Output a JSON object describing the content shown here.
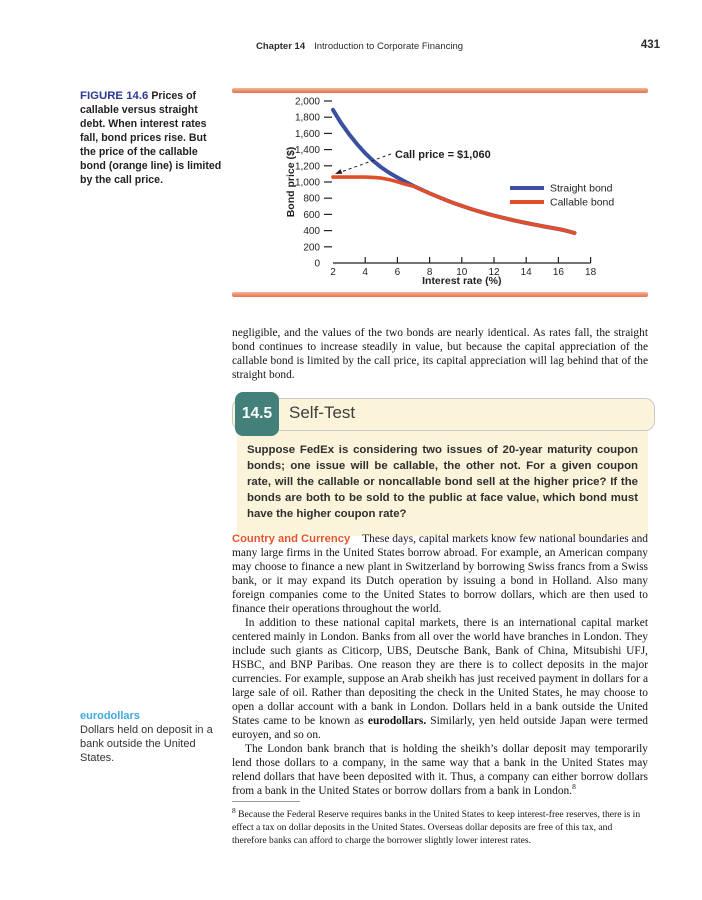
{
  "header": {
    "chapter": "Chapter 14",
    "title": "Introduction to Corporate Financing",
    "page_number": "431"
  },
  "figure": {
    "label": "FIGURE 14.6",
    "caption": "Prices of callable versus straight debt. When interest rates fall, bond prices rise. But the price of the callable bond (orange line) is limited by the call price."
  },
  "chart_data": {
    "type": "line",
    "title": "",
    "xlabel": "Interest rate (%)",
    "ylabel": "Bond price ($)",
    "xlim": [
      2,
      18
    ],
    "ylim": [
      0,
      2000
    ],
    "x_ticks": [
      2,
      4,
      6,
      8,
      10,
      12,
      14,
      16,
      18
    ],
    "y_ticks": [
      0,
      200,
      400,
      600,
      800,
      1000,
      1200,
      1400,
      1600,
      1800,
      2000
    ],
    "y_tick_labels": [
      "0",
      "200",
      "400",
      "600",
      "800",
      "1,000",
      "1,200",
      "1,400",
      "1,600",
      "1,800",
      "2,000"
    ],
    "grid": false,
    "legend_position": "right",
    "annotation": {
      "text": "Call price = $1,060",
      "call_price": 1060
    },
    "x": [
      2,
      2.5,
      3,
      3.5,
      4,
      4.5,
      5,
      5.5,
      6,
      6.5,
      7,
      7.5,
      8,
      8.5,
      9,
      9.5,
      10,
      10.5,
      11,
      11.5,
      12,
      12.5,
      13,
      13.5,
      14,
      14.5,
      15,
      15.5,
      16,
      16.5,
      17
    ],
    "series": [
      {
        "name": "Straight bond",
        "color": "#3c4fa1",
        "values": [
          1890,
          1730,
          1590,
          1465,
          1355,
          1260,
          1180,
          1112,
          1055,
          1002,
          952,
          905,
          860,
          818,
          778,
          740,
          705,
          672,
          641,
          612,
          585,
          560,
          537,
          515,
          494,
          474,
          455,
          437,
          420,
          398,
          370
        ]
      },
      {
        "name": "Callable bond",
        "color": "#e04f2a",
        "values": [
          1060,
          1060,
          1060,
          1060,
          1060,
          1057,
          1048,
          1030,
          1003,
          972,
          948,
          903,
          860,
          818,
          778,
          740,
          705,
          672,
          641,
          612,
          585,
          560,
          537,
          515,
          494,
          474,
          455,
          437,
          420,
          398,
          370
        ]
      }
    ]
  },
  "paragraphs": {
    "p1": "negligible, and the values of the two bonds are nearly identical. As rates fall, the straight bond continues to increase steadily in value, but because the capital appreciation of the callable bond is limited by the call price, its capital appreciation will lag behind that of the straight bond.",
    "country_heading": "Country and Currency",
    "country_body": "These days, capital markets know few national boundaries and many large firms in the United States borrow abroad. For example, an American company may choose to finance a new plant in Switzerland by borrowing Swiss francs from a Swiss bank, or it may expand its Dutch operation by issuing a bond in Holland. Also many foreign companies come to the United States to borrow dollars, which are then used to finance their operations throughout the world.",
    "intl_part1": "In addition to these national capital markets, there is an international capital market centered mainly in London. Banks from all over the world have branches in London. They include such giants as Citicorp, UBS, Deutsche Bank, Bank of China, Mitsubishi UFJ, HSBC, and BNP Paribas. One reason they are there is to collect deposits in the major currencies. For example, suppose an Arab sheikh has just received payment in dollars for a large sale of oil. Rather than depositing the check in the United States, he may choose to open a dollar account with a bank in London. Dollars held in a bank outside the United States came to be known as ",
    "intl_bold": "eurodollars.",
    "intl_part2": " Similarly, yen held outside Japan were termed euroyen, and so on.",
    "london_body": "The London bank branch that is holding the sheikh’s dollar deposit may temporarily lend those dollars to a company, in the same way that a bank in the United States may relend dollars that have been deposited with it. Thus, a company can either borrow dollars from a bank in the United States or borrow dollars from a bank in London.",
    "london_sup": "8"
  },
  "self_test": {
    "number": "14.5",
    "title": "Self-Test",
    "body": "Suppose FedEx is considering two issues of 20-year maturity coupon bonds; one issue will be callable, the other not. For a given coupon rate, will the callable or noncallable bond sell at the higher price? If the bonds are both to be sold to the public at face value, which bond must have the higher coupon rate?"
  },
  "margin_note": {
    "term": "eurodollars",
    "definition": "Dollars held on deposit in a bank outside the United States."
  },
  "footnote": {
    "marker": "8",
    "text": " Because the Federal Reserve requires banks in the United States to keep interest-free reserves, there is in effect a tax on dollar deposits in the United States. Overseas dollar deposits are free of this tax, and therefore banks can afford to charge the borrower slightly lower interest rates."
  },
  "colors": {
    "straight_bond": "#3c4fa1",
    "callable_bond": "#e04f2a",
    "accent_bar": "#ee9672",
    "self_test_badge": "#428079",
    "self_test_bg": "#fbf4da",
    "figure_label": "#2c3a94",
    "country_heading": "#e65425",
    "margin_term": "#3fa9e0"
  }
}
